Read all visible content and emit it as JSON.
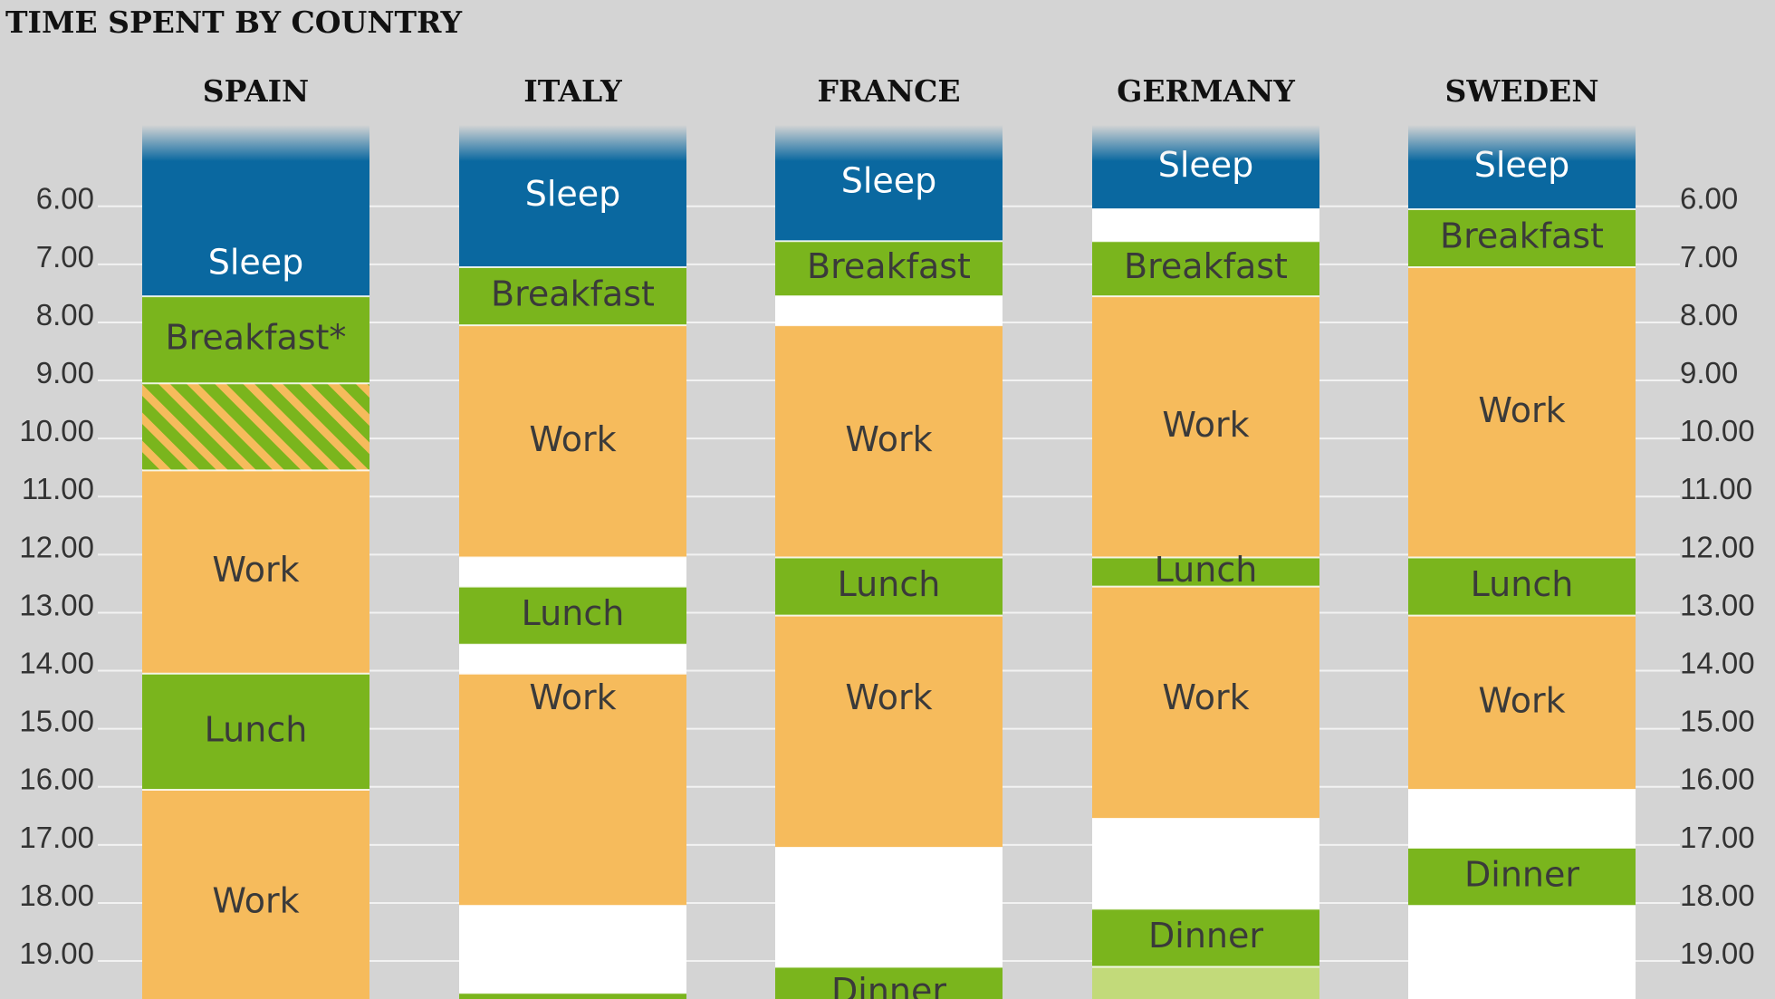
{
  "chart_data": {
    "type": "bar",
    "title": "TIME SPENT BY COUNTRY",
    "y_ticks": [
      "6.00",
      "7.00",
      "8.00",
      "9.00",
      "10.00",
      "11.00",
      "12.00",
      "13.00",
      "14.00",
      "15.00",
      "16.00",
      "17.00",
      "18.00",
      "19.00"
    ],
    "y_range": [
      4.6,
      20.4
    ],
    "grid": true,
    "colors": {
      "sleep": "#0a68a0",
      "meal": "#7ab51d",
      "meal_light": "#c2da7a",
      "work": "#f6bb5c",
      "free": "#ffffff",
      "hatch_stripe": "#f6bb5c"
    },
    "countries": [
      {
        "name": "SPAIN",
        "segments": [
          {
            "activity": "Sleep",
            "label": "Sleep",
            "start": 4.6,
            "end": 7.55,
            "color": "sleep",
            "label_y": 7.0
          },
          {
            "activity": "Breakfast",
            "label": "Breakfast*",
            "start": 7.55,
            "end": 9.05,
            "color": "meal"
          },
          {
            "activity": "Breakfast (optional)",
            "label": "",
            "start": 9.05,
            "end": 10.55,
            "color": "meal",
            "hatch": true
          },
          {
            "activity": "Work",
            "label": "Work",
            "start": 10.55,
            "end": 14.05,
            "color": "work"
          },
          {
            "activity": "Lunch",
            "label": "Lunch",
            "start": 14.05,
            "end": 16.05,
            "color": "meal"
          },
          {
            "activity": "Work",
            "label": "Work",
            "start": 16.05,
            "end": 20.4,
            "color": "work",
            "label_y": 18.0
          }
        ]
      },
      {
        "name": "ITALY",
        "segments": [
          {
            "activity": "Sleep",
            "label": "Sleep",
            "start": 4.6,
            "end": 7.05,
            "color": "sleep"
          },
          {
            "activity": "Breakfast",
            "label": "Breakfast",
            "start": 7.05,
            "end": 8.05,
            "color": "meal"
          },
          {
            "activity": "Work",
            "label": "Work",
            "start": 8.05,
            "end": 12.05,
            "color": "work"
          },
          {
            "activity": "Free",
            "label": "",
            "start": 12.05,
            "end": 12.55,
            "color": "free"
          },
          {
            "activity": "Lunch",
            "label": "Lunch",
            "start": 12.55,
            "end": 13.55,
            "color": "meal"
          },
          {
            "activity": "Free",
            "label": "",
            "start": 13.55,
            "end": 14.05,
            "color": "free"
          },
          {
            "activity": "Work",
            "label": "Work",
            "start": 14.05,
            "end": 18.05,
            "color": "work",
            "label_y": 14.5
          },
          {
            "activity": "Free",
            "label": "",
            "start": 18.05,
            "end": 19.55,
            "color": "free"
          },
          {
            "activity": "Dinner",
            "label": "",
            "start": 19.55,
            "end": 20.4,
            "color": "meal"
          }
        ]
      },
      {
        "name": "FRANCE",
        "segments": [
          {
            "activity": "Sleep",
            "label": "Sleep",
            "start": 4.6,
            "end": 6.6,
            "color": "sleep"
          },
          {
            "activity": "Breakfast",
            "label": "Breakfast",
            "start": 6.6,
            "end": 7.55,
            "color": "meal"
          },
          {
            "activity": "Free",
            "label": "",
            "start": 7.55,
            "end": 8.05,
            "color": "free"
          },
          {
            "activity": "Work",
            "label": "Work",
            "start": 8.05,
            "end": 12.05,
            "color": "work"
          },
          {
            "activity": "Lunch",
            "label": "Lunch",
            "start": 12.05,
            "end": 13.05,
            "color": "meal"
          },
          {
            "activity": "Work",
            "label": "Work",
            "start": 13.05,
            "end": 17.05,
            "color": "work",
            "label_y": 14.5
          },
          {
            "activity": "Free",
            "label": "",
            "start": 17.05,
            "end": 19.1,
            "color": "free"
          },
          {
            "activity": "Dinner",
            "label": "Dinner",
            "start": 19.1,
            "end": 20.4,
            "color": "meal",
            "label_y": 19.55
          }
        ]
      },
      {
        "name": "GERMANY",
        "segments": [
          {
            "activity": "Sleep",
            "label": "Sleep",
            "start": 4.6,
            "end": 6.05,
            "color": "sleep"
          },
          {
            "activity": "Free",
            "label": "",
            "start": 6.05,
            "end": 6.6,
            "color": "free"
          },
          {
            "activity": "Breakfast",
            "label": "Breakfast",
            "start": 6.6,
            "end": 7.55,
            "color": "meal"
          },
          {
            "activity": "Work",
            "label": "Work",
            "start": 7.55,
            "end": 12.05,
            "color": "work"
          },
          {
            "activity": "Lunch",
            "label": "Lunch",
            "start": 12.05,
            "end": 12.55,
            "color": "meal"
          },
          {
            "activity": "Work",
            "label": "Work",
            "start": 12.55,
            "end": 16.55,
            "color": "work",
            "label_y": 14.5
          },
          {
            "activity": "Free",
            "label": "",
            "start": 16.55,
            "end": 18.1,
            "color": "free"
          },
          {
            "activity": "Dinner",
            "label": "Dinner",
            "start": 18.1,
            "end": 19.1,
            "color": "meal"
          },
          {
            "activity": "Light",
            "label": "",
            "start": 19.1,
            "end": 20.4,
            "color": "meal_light"
          }
        ]
      },
      {
        "name": "SWEDEN",
        "segments": [
          {
            "activity": "Sleep",
            "label": "Sleep",
            "start": 4.6,
            "end": 6.05,
            "color": "sleep"
          },
          {
            "activity": "Breakfast",
            "label": "Breakfast",
            "start": 6.05,
            "end": 7.05,
            "color": "meal"
          },
          {
            "activity": "Work",
            "label": "Work",
            "start": 7.05,
            "end": 12.05,
            "color": "work"
          },
          {
            "activity": "Lunch",
            "label": "Lunch",
            "start": 12.05,
            "end": 13.05,
            "color": "meal"
          },
          {
            "activity": "Work",
            "label": "Work",
            "start": 13.05,
            "end": 16.05,
            "color": "work"
          },
          {
            "activity": "Free",
            "label": "",
            "start": 16.05,
            "end": 17.05,
            "color": "free"
          },
          {
            "activity": "Dinner",
            "label": "Dinner",
            "start": 17.05,
            "end": 18.05,
            "color": "meal"
          },
          {
            "activity": "Free",
            "label": "",
            "start": 18.05,
            "end": 20.4,
            "color": "free"
          }
        ]
      }
    ]
  }
}
